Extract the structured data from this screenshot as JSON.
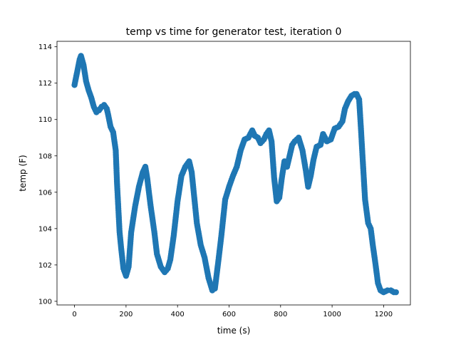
{
  "chart_data": {
    "type": "scatter",
    "title": "temp vs time for generator test, iteration 0",
    "xlabel": "time (s)",
    "ylabel": "temp (F)",
    "xlim": [
      -68,
      1304
    ],
    "ylim": [
      99.8,
      114.3
    ],
    "xticks": [
      0,
      200,
      400,
      600,
      800,
      1000,
      1200
    ],
    "yticks": [
      100,
      102,
      104,
      106,
      108,
      110,
      112,
      114
    ],
    "grid": false,
    "legend": "none",
    "marker_color": "#1f77b4",
    "series": [
      {
        "anchors": [
          [
            0,
            111.9
          ],
          [
            10,
            112.6
          ],
          [
            20,
            113.3
          ],
          [
            25,
            113.5
          ],
          [
            35,
            113.0
          ],
          [
            45,
            112.1
          ],
          [
            55,
            111.6
          ],
          [
            65,
            111.2
          ],
          [
            75,
            110.7
          ],
          [
            85,
            110.4
          ],
          [
            95,
            110.5
          ],
          [
            105,
            110.7
          ],
          [
            115,
            110.8
          ],
          [
            125,
            110.6
          ],
          [
            130,
            110.3
          ],
          [
            140,
            109.6
          ],
          [
            150,
            109.3
          ],
          [
            160,
            108.3
          ],
          [
            165,
            106.5
          ],
          [
            175,
            103.8
          ],
          [
            182,
            102.8
          ],
          [
            190,
            101.8
          ],
          [
            200,
            101.4
          ],
          [
            210,
            101.9
          ],
          [
            220,
            103.8
          ],
          [
            235,
            105.2
          ],
          [
            250,
            106.3
          ],
          [
            265,
            107.1
          ],
          [
            275,
            107.4
          ],
          [
            282,
            106.8
          ],
          [
            295,
            105.3
          ],
          [
            310,
            103.8
          ],
          [
            320,
            102.6
          ],
          [
            335,
            101.9
          ],
          [
            350,
            101.6
          ],
          [
            362,
            101.8
          ],
          [
            372,
            102.3
          ],
          [
            385,
            103.6
          ],
          [
            400,
            105.5
          ],
          [
            415,
            106.9
          ],
          [
            430,
            107.4
          ],
          [
            445,
            107.7
          ],
          [
            455,
            107.1
          ],
          [
            465,
            105.7
          ],
          [
            475,
            104.3
          ],
          [
            490,
            103.1
          ],
          [
            505,
            102.4
          ],
          [
            520,
            101.3
          ],
          [
            535,
            100.6
          ],
          [
            545,
            100.7
          ],
          [
            553,
            101.6
          ],
          [
            560,
            102.4
          ],
          [
            570,
            103.6
          ],
          [
            585,
            105.6
          ],
          [
            600,
            106.3
          ],
          [
            615,
            106.9
          ],
          [
            630,
            107.4
          ],
          [
            645,
            108.3
          ],
          [
            660,
            108.9
          ],
          [
            675,
            109.0
          ],
          [
            690,
            109.4
          ],
          [
            700,
            109.1
          ],
          [
            712,
            109.0
          ],
          [
            722,
            108.7
          ],
          [
            735,
            108.9
          ],
          [
            745,
            109.2
          ],
          [
            755,
            109.4
          ],
          [
            765,
            108.8
          ],
          [
            775,
            106.8
          ],
          [
            785,
            105.5
          ],
          [
            795,
            105.7
          ],
          [
            805,
            106.8
          ],
          [
            815,
            107.7
          ],
          [
            825,
            107.4
          ],
          [
            835,
            108.0
          ],
          [
            845,
            108.6
          ],
          [
            855,
            108.8
          ],
          [
            870,
            109.0
          ],
          [
            885,
            108.3
          ],
          [
            898,
            107.2
          ],
          [
            907,
            106.3
          ],
          [
            917,
            106.9
          ],
          [
            928,
            107.8
          ],
          [
            940,
            108.5
          ],
          [
            955,
            108.6
          ],
          [
            965,
            109.2
          ],
          [
            980,
            108.8
          ],
          [
            995,
            108.9
          ],
          [
            1010,
            109.5
          ],
          [
            1025,
            109.6
          ],
          [
            1040,
            109.9
          ],
          [
            1050,
            110.6
          ],
          [
            1062,
            111.0
          ],
          [
            1075,
            111.3
          ],
          [
            1087,
            111.4
          ],
          [
            1095,
            111.4
          ],
          [
            1105,
            111.1
          ],
          [
            1112,
            109.5
          ],
          [
            1118,
            108.0
          ],
          [
            1128,
            105.6
          ],
          [
            1140,
            104.3
          ],
          [
            1150,
            104.0
          ],
          [
            1158,
            103.1
          ],
          [
            1168,
            102.1
          ],
          [
            1178,
            101.0
          ],
          [
            1188,
            100.6
          ],
          [
            1200,
            100.5
          ],
          [
            1215,
            100.6
          ],
          [
            1228,
            100.6
          ],
          [
            1240,
            100.5
          ],
          [
            1248,
            100.5
          ]
        ]
      }
    ]
  }
}
